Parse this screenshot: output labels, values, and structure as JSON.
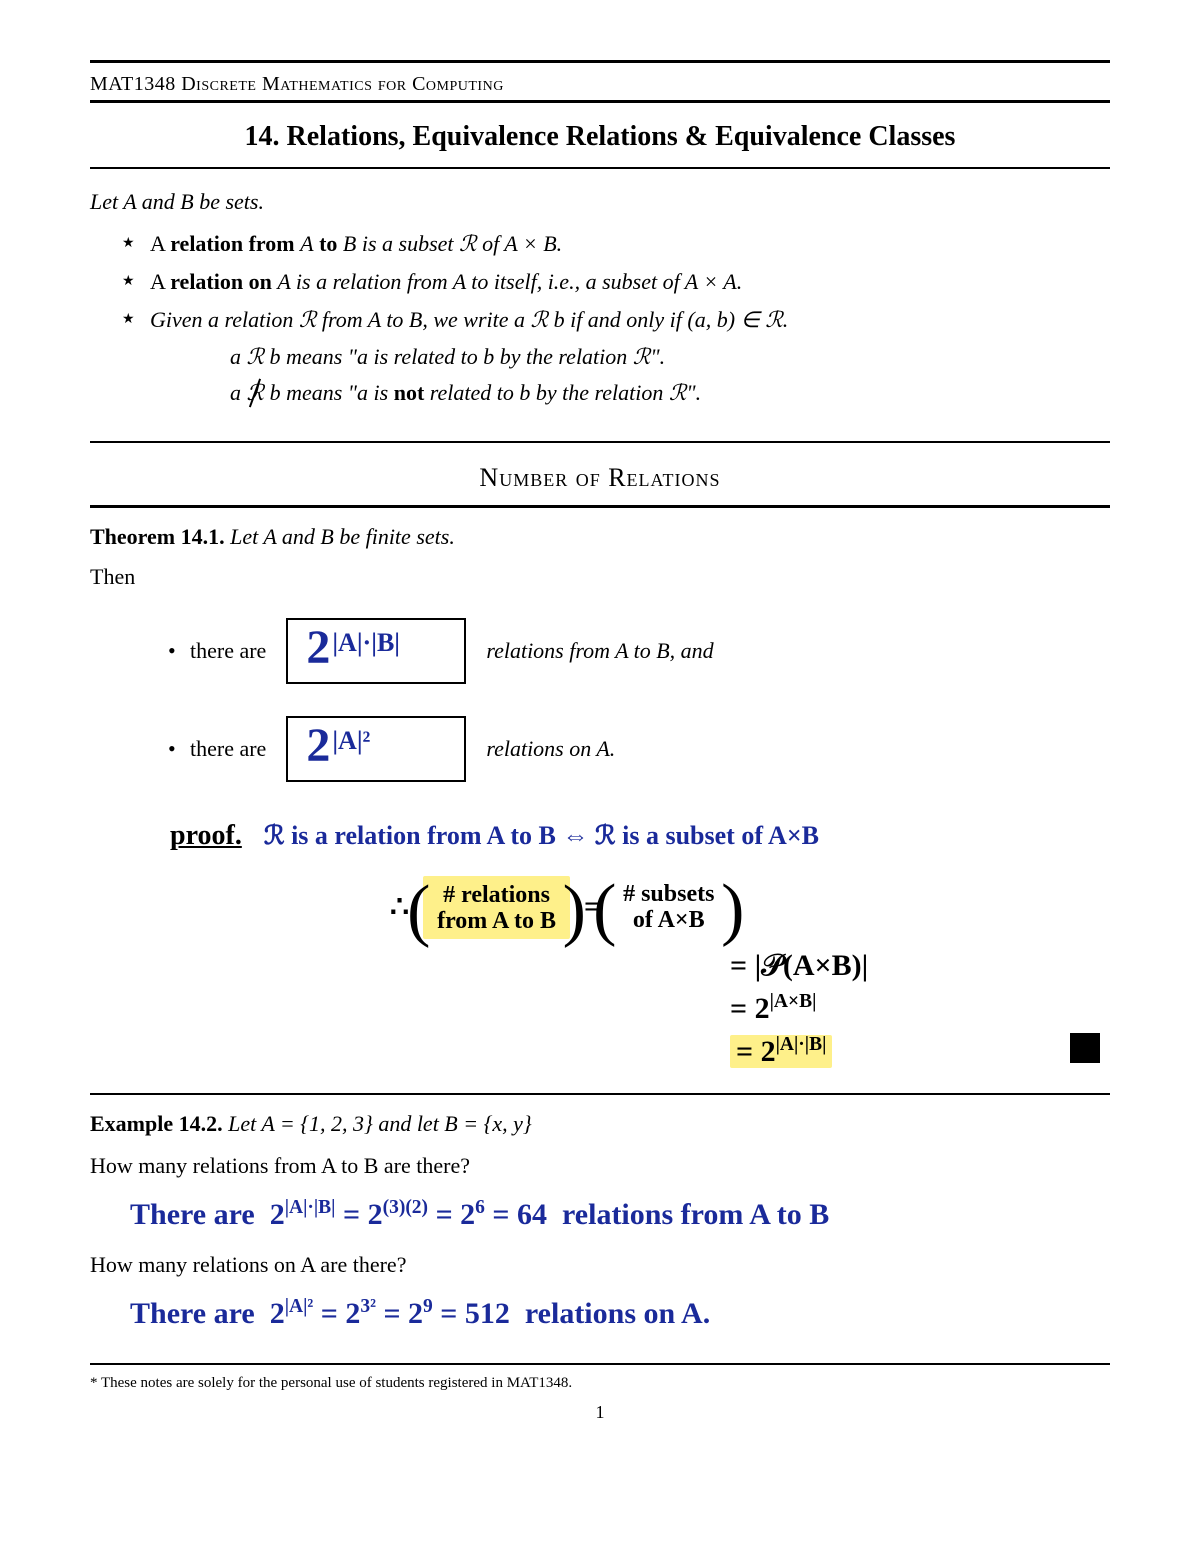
{
  "course_header": "MAT1348 Discrete Mathematics for Computing",
  "title": "14. Relations, Equivalence Relations & Equivalence Classes",
  "intro": "Let A and B be sets.",
  "bullets": {
    "b1_pre": "A ",
    "b1_bold": "relation from ",
    "b1_mid": "A",
    "b1_bold2": " to ",
    "b1_mid2": "B",
    "b1_post": " is a subset ℛ of A × B.",
    "b2_pre": "A ",
    "b2_bold": "relation on ",
    "b2_mid": "A",
    "b2_post": " is a relation from A to itself, i.e., a subset of A × A.",
    "b3": "Given a relation ℛ from A to B, we write a ℛ b if and only if (a, b) ∈ ℛ.",
    "sub1": "a ℛ b means \"a is related to b by the relation ℛ\".",
    "sub2_pre": "a ",
    "sub2_sym": "ℛ",
    "sub2_mid": " b means \"a is ",
    "sub2_bold": "not",
    "sub2_post": " related to b by the relation ℛ\"."
  },
  "section_heading": "Number of Relations",
  "theorem": {
    "label": "Theorem 14.1.",
    "text": " Let A and B be finite sets.",
    "then": "Then",
    "item1_pre": "there are",
    "item1_post": "relations from A to B, and",
    "box1_base": "2",
    "box1_exp": "|A|·|B|",
    "item2_pre": "there are",
    "item2_post": "relations on A.",
    "box2_base": "2",
    "box2_exp": "|A|²"
  },
  "proof": {
    "label": "proof.",
    "line1": "ℛ is a relation from A to B  ⇔  ℛ is a subset of A×B",
    "therefore": "∴",
    "lhs_top": "# relations",
    "lhs_bot": "from A to B",
    "rhs_top": "# subsets",
    "rhs_bot": "of  A×B",
    "eq1": "= |𝒫(A×B)|",
    "eq2_base": "= 2",
    "eq2_exp": "|A×B|",
    "eq3_base": "= 2",
    "eq3_exp": "|A|·|B|"
  },
  "example": {
    "label": "Example 14.2.",
    "text": " Let A = {1, 2, 3} and let B = {x, y}",
    "q1": "How many relations from A to B are there?",
    "a1": "There are  2|A|·|B| = 2(3)(2) = 2⁶ = 64  relations from A to B",
    "q2": "How many relations on A are there?",
    "a2": "There are  2|A|² = 2³² = 2⁹ = 512  relations on A."
  },
  "footnote": "* These notes are solely for the personal use of students registered in MAT1348.",
  "page_number": "1",
  "colors": {
    "ink_blue": "#1a2a9a",
    "highlight": "#fef08a",
    "black": "#000000",
    "background": "#ffffff"
  },
  "typography": {
    "body_font": "Georgia/serif",
    "handwriting_font": "Comic Sans MS/cursive",
    "body_size_pt": 16,
    "title_size_pt": 21,
    "hand_size_pt": 22
  }
}
